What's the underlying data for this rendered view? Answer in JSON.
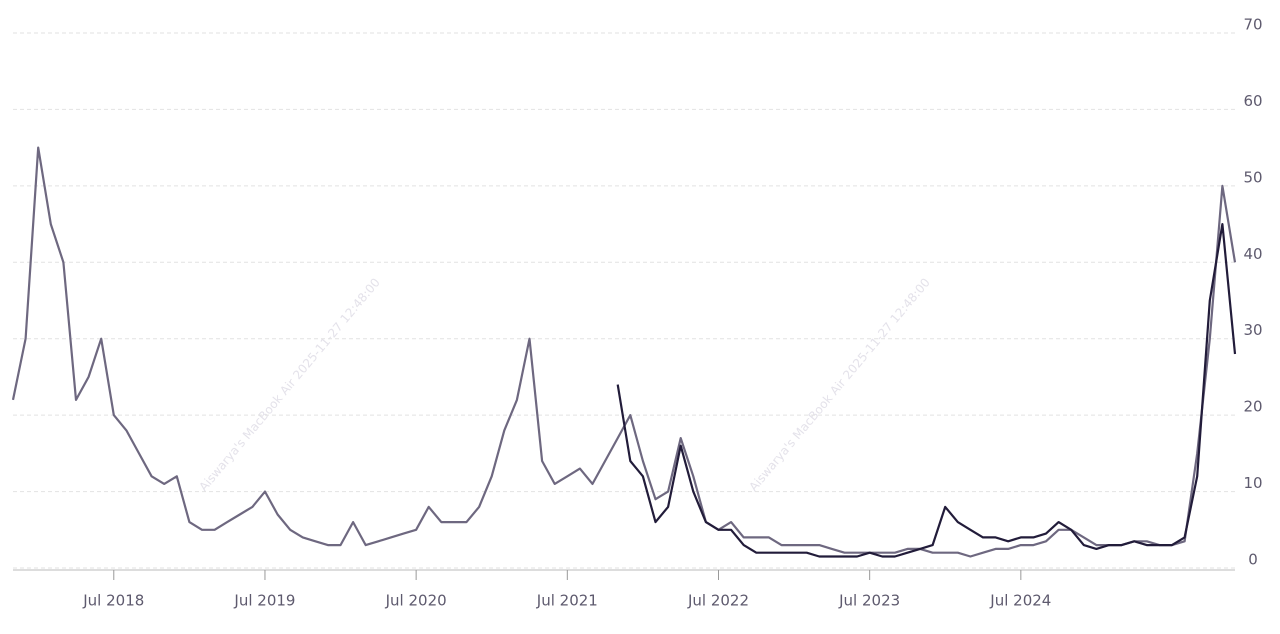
{
  "chart_data": {
    "type": "line",
    "categories": [
      null,
      null,
      null,
      null,
      null,
      null,
      null,
      null,
      "Jul 2018",
      null,
      null,
      null,
      null,
      null,
      null,
      null,
      null,
      null,
      null,
      null,
      "Jul 2019",
      null,
      null,
      null,
      null,
      null,
      null,
      null,
      null,
      null,
      null,
      null,
      "Jul 2020",
      null,
      null,
      null,
      null,
      null,
      null,
      null,
      null,
      null,
      null,
      null,
      "Jul 2021",
      null,
      null,
      null,
      null,
      null,
      null,
      null,
      null,
      null,
      null,
      null,
      "Jul 2022",
      null,
      null,
      null,
      null,
      null,
      null,
      null,
      null,
      null,
      null,
      null,
      "Jul 2023",
      null,
      null,
      null,
      null,
      null,
      null,
      null,
      null,
      null,
      null,
      null,
      "Jul 2024",
      null,
      null,
      null,
      null,
      null,
      null,
      null,
      null,
      null,
      null,
      null,
      null,
      null,
      null,
      null,
      null,
      null
    ],
    "series": [
      {
        "color": "#6e6880",
        "values": [
          22,
          30,
          55,
          45,
          40,
          22,
          25,
          30,
          20,
          18,
          15,
          12,
          11,
          12,
          6,
          5,
          5,
          6,
          7,
          8,
          10,
          7,
          5,
          4,
          3.5,
          3,
          3,
          6,
          3,
          3.5,
          4,
          4.5,
          5,
          8,
          6,
          6,
          6,
          8,
          12,
          18,
          22,
          30,
          14,
          11,
          12,
          13,
          11,
          14,
          17,
          20,
          14,
          9,
          10,
          17,
          12,
          6,
          5,
          6,
          4,
          4,
          4,
          3,
          3,
          3,
          3,
          2.5,
          2,
          2,
          2,
          2,
          2,
          2.5,
          2.5,
          2,
          2,
          2,
          1.5,
          2,
          2.5,
          2.5,
          3,
          3,
          3.5,
          5,
          5,
          4,
          3,
          3,
          3,
          3.5,
          3.5,
          3,
          3,
          3.5,
          15,
          30,
          50,
          40
        ]
      },
      {
        "color": "#221c3a",
        "values": [
          null,
          null,
          null,
          null,
          null,
          null,
          null,
          null,
          null,
          null,
          null,
          null,
          null,
          null,
          null,
          null,
          null,
          null,
          null,
          null,
          null,
          null,
          null,
          null,
          null,
          null,
          null,
          null,
          null,
          null,
          null,
          null,
          null,
          null,
          null,
          null,
          null,
          null,
          null,
          null,
          null,
          null,
          null,
          null,
          null,
          null,
          null,
          null,
          24,
          14,
          12,
          6,
          8,
          16,
          10,
          6,
          5,
          5,
          3,
          2,
          2,
          2,
          2,
          2,
          1.5,
          1.5,
          1.5,
          1.5,
          2,
          1.5,
          1.5,
          2,
          2.5,
          3,
          8,
          6,
          5,
          4,
          4,
          3.5,
          4,
          4,
          4.5,
          6,
          5,
          3,
          2.5,
          3,
          3,
          3.5,
          3,
          3,
          3,
          4,
          12,
          35,
          45,
          28
        ]
      }
    ],
    "ylim": [
      0,
      70
    ],
    "yticks": [
      0,
      10,
      20,
      30,
      40,
      50,
      60,
      70
    ],
    "grid": true,
    "watermarks": [
      "Aiswarya's MacBook Air 2025-11-27 12:48:00",
      "Aiswarya's MacBook Air 2025-11-27 12:48:00"
    ]
  }
}
